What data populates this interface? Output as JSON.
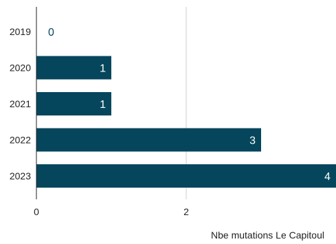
{
  "chart_data": {
    "type": "bar",
    "orientation": "horizontal",
    "categories": [
      "2019",
      "2020",
      "2021",
      "2022",
      "2023"
    ],
    "series": [
      {
        "values": [
          0,
          1,
          1,
          3,
          4
        ]
      }
    ],
    "xlabel": "Nbe mutations Le Capitoul",
    "ylabel": "",
    "xlim": [
      0,
      4
    ],
    "xticks": [
      "0",
      "2"
    ],
    "grid": true,
    "data_labels": [
      "0",
      "1",
      "1",
      "3",
      "4"
    ],
    "colors": {
      "bar": "#06465c",
      "label_on_bar": "#ffffff",
      "label_outside": "#06465c",
      "grid": "#cccccc",
      "axis": "#222222"
    }
  }
}
